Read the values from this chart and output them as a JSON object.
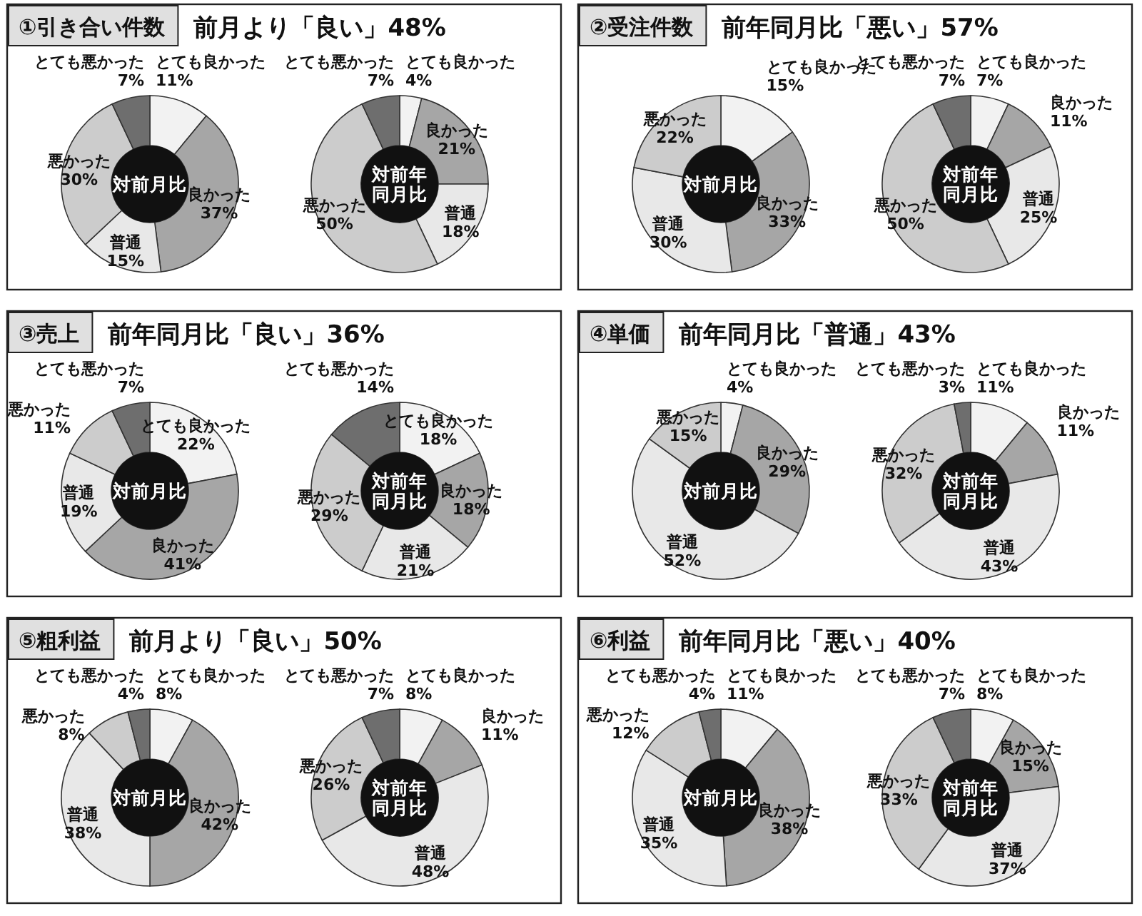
{
  "chart_data": [
    {
      "type": "donut",
      "title": "①引き合い件数",
      "subtitle": "前月より「良い」48%",
      "annotations": [
        "対前月比"
      ],
      "categories": [
        "とても良かった",
        "良かった",
        "普通",
        "悪かった",
        "とても悪かった"
      ],
      "values": [
        11,
        37,
        15,
        30,
        7
      ],
      "value_labels": [
        "11%",
        "37%",
        "15%",
        "30%",
        "7%"
      ],
      "colors": [
        "#f2f2f2",
        "#a6a6a6",
        "#e8e8e8",
        "#cccccc",
        "#6e6e6e"
      ]
    },
    {
      "type": "donut",
      "annotations": [
        "対前年同月比"
      ],
      "categories": [
        "とても良かった",
        "良かった",
        "普通",
        "悪かった",
        "とても悪かった"
      ],
      "values": [
        4,
        21,
        18,
        50,
        7
      ],
      "value_labels": [
        "4%",
        "21%",
        "18%",
        "50%",
        "7%"
      ],
      "colors": [
        "#f2f2f2",
        "#a6a6a6",
        "#e8e8e8",
        "#cccccc",
        "#6e6e6e"
      ]
    },
    {
      "type": "donut",
      "title": "②受注件数",
      "subtitle": "前年同月比「悪い」57%",
      "annotations": [
        "対前月比"
      ],
      "categories": [
        "とても良かった",
        "良かった",
        "普通",
        "悪かった"
      ],
      "values": [
        15,
        33,
        30,
        22
      ],
      "value_labels": [
        "15%",
        "33%",
        "30%",
        "22%"
      ],
      "colors": [
        "#f2f2f2",
        "#a6a6a6",
        "#e8e8e8",
        "#cccccc"
      ]
    },
    {
      "type": "donut",
      "annotations": [
        "対前年同月比"
      ],
      "categories": [
        "とても良かった",
        "良かった",
        "普通",
        "悪かった",
        "とても悪かった"
      ],
      "values": [
        7,
        11,
        25,
        50,
        7
      ],
      "value_labels": [
        "7%",
        "11%",
        "25%",
        "50%",
        "7%"
      ],
      "colors": [
        "#f2f2f2",
        "#a6a6a6",
        "#e8e8e8",
        "#cccccc",
        "#6e6e6e"
      ]
    },
    {
      "type": "donut",
      "title": "③売上",
      "subtitle": "前年同月比「良い」36%",
      "annotations": [
        "対前月比"
      ],
      "categories": [
        "とても良かった",
        "良かった",
        "普通",
        "悪かった",
        "とても悪かった"
      ],
      "values": [
        22,
        41,
        19,
        11,
        7
      ],
      "value_labels": [
        "22%",
        "41%",
        "19%",
        "11%",
        "7%"
      ],
      "colors": [
        "#f2f2f2",
        "#a6a6a6",
        "#e8e8e8",
        "#cccccc",
        "#6e6e6e"
      ]
    },
    {
      "type": "donut",
      "annotations": [
        "対前年同月比"
      ],
      "categories": [
        "とても良かった",
        "良かった",
        "普通",
        "悪かった",
        "とても悪かった"
      ],
      "values": [
        18,
        18,
        21,
        29,
        14
      ],
      "value_labels": [
        "18%",
        "18%",
        "21%",
        "29%",
        "14%"
      ],
      "colors": [
        "#f2f2f2",
        "#a6a6a6",
        "#e8e8e8",
        "#cccccc",
        "#6e6e6e"
      ]
    },
    {
      "type": "donut",
      "title": "④単価",
      "subtitle": "前年同月比「普通」43%",
      "annotations": [
        "対前月比"
      ],
      "categories": [
        "とても良かった",
        "良かった",
        "普通",
        "悪かった"
      ],
      "values": [
        4,
        29,
        52,
        15
      ],
      "value_labels": [
        "4%",
        "29%",
        "52%",
        "15%"
      ],
      "colors": [
        "#f2f2f2",
        "#a6a6a6",
        "#e8e8e8",
        "#cccccc"
      ]
    },
    {
      "type": "donut",
      "annotations": [
        "対前年同月比"
      ],
      "categories": [
        "とても良かった",
        "良かった",
        "普通",
        "悪かった",
        "とても悪かった"
      ],
      "values": [
        11,
        11,
        43,
        32,
        3
      ],
      "value_labels": [
        "11%",
        "11%",
        "43%",
        "32%",
        "3%"
      ],
      "colors": [
        "#f2f2f2",
        "#a6a6a6",
        "#e8e8e8",
        "#cccccc",
        "#6e6e6e"
      ]
    },
    {
      "type": "donut",
      "title": "⑤粗利益",
      "subtitle": "前月より「良い」50%",
      "annotations": [
        "対前月比"
      ],
      "categories": [
        "とても良かった",
        "良かった",
        "普通",
        "悪かった",
        "とても悪かった"
      ],
      "values": [
        8,
        42,
        38,
        8,
        4
      ],
      "value_labels": [
        "8%",
        "42%",
        "38%",
        "8%",
        "4%"
      ],
      "colors": [
        "#f2f2f2",
        "#a6a6a6",
        "#e8e8e8",
        "#cccccc",
        "#6e6e6e"
      ]
    },
    {
      "type": "donut",
      "annotations": [
        "対前年同月比"
      ],
      "categories": [
        "とても良かった",
        "良かった",
        "普通",
        "悪かった",
        "とても悪かった"
      ],
      "values": [
        8,
        11,
        48,
        26,
        7
      ],
      "value_labels": [
        "8%",
        "11%",
        "48%",
        "26%",
        "7%"
      ],
      "colors": [
        "#f2f2f2",
        "#a6a6a6",
        "#e8e8e8",
        "#cccccc",
        "#6e6e6e"
      ]
    },
    {
      "type": "donut",
      "title": "⑥利益",
      "subtitle": "前年同月比「悪い」40%",
      "annotations": [
        "対前月比"
      ],
      "categories": [
        "とても良かった",
        "良かった",
        "普通",
        "悪かった",
        "とても悪かった"
      ],
      "values": [
        11,
        38,
        35,
        12,
        4
      ],
      "value_labels": [
        "11%",
        "38%",
        "35%",
        "12%",
        "4%"
      ],
      "colors": [
        "#f2f2f2",
        "#a6a6a6",
        "#e8e8e8",
        "#cccccc",
        "#6e6e6e"
      ]
    },
    {
      "type": "donut",
      "annotations": [
        "対前年同月比"
      ],
      "categories": [
        "とても良かった",
        "良かった",
        "普通",
        "悪かった",
        "とても悪かった"
      ],
      "values": [
        8,
        15,
        37,
        33,
        7
      ],
      "value_labels": [
        "8%",
        "15%",
        "37%",
        "33%",
        "7%"
      ],
      "colors": [
        "#f2f2f2",
        "#a6a6a6",
        "#e8e8e8",
        "#cccccc",
        "#6e6e6e"
      ]
    }
  ]
}
